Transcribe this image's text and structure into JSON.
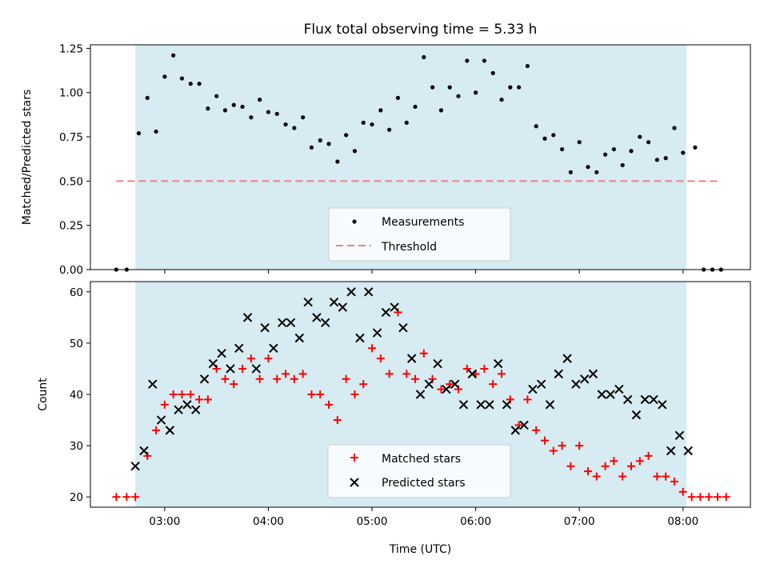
{
  "chart_data": [
    {
      "type": "scatter",
      "title": "Flux total observing time = 5.33 h",
      "xlabel": "",
      "ylabel": "Matched/Predicted stars",
      "ylim": [
        0,
        1.27
      ],
      "yticks": [
        "0.00",
        "0.25",
        "0.50",
        "0.75",
        "1.00",
        "1.25"
      ],
      "ytick_values": [
        0,
        0.25,
        0.5,
        0.75,
        1.0,
        1.25
      ],
      "xtick_labels_shown": false,
      "shaded_span": [
        "02:43",
        "08:02"
      ],
      "shade_color": "#add8e6",
      "threshold": {
        "name": "Threshold",
        "value": 0.5,
        "x_range": [
          "02:32",
          "08:22"
        ],
        "color": "#f08080"
      },
      "legend": {
        "placement": "lower center",
        "entries": [
          "Measurements",
          "Threshold"
        ]
      },
      "series": [
        {
          "name": "Measurements",
          "color": "#000000",
          "x": [
            "02:32",
            "02:38",
            "02:45",
            "02:50",
            "02:55",
            "03:00",
            "03:05",
            "03:10",
            "03:15",
            "03:20",
            "03:25",
            "03:30",
            "03:35",
            "03:40",
            "03:45",
            "03:50",
            "03:55",
            "04:00",
            "04:05",
            "04:10",
            "04:15",
            "04:20",
            "04:25",
            "04:30",
            "04:35",
            "04:40",
            "04:45",
            "04:50",
            "04:55",
            "05:00",
            "05:05",
            "05:10",
            "05:15",
            "05:20",
            "05:25",
            "05:30",
            "05:35",
            "05:40",
            "05:45",
            "05:50",
            "05:55",
            "06:00",
            "06:05",
            "06:10",
            "06:15",
            "06:20",
            "06:25",
            "06:30",
            "06:35",
            "06:40",
            "06:45",
            "06:50",
            "06:55",
            "07:00",
            "07:05",
            "07:10",
            "07:15",
            "07:20",
            "07:25",
            "07:30",
            "07:35",
            "07:40",
            "07:45",
            "07:50",
            "07:55",
            "08:00",
            "08:07",
            "08:12",
            "08:17",
            "08:22"
          ],
          "y": [
            0.0,
            0.0,
            0.77,
            0.97,
            0.78,
            1.09,
            1.21,
            1.08,
            1.05,
            1.05,
            0.91,
            0.98,
            0.9,
            0.93,
            0.92,
            0.86,
            0.96,
            0.89,
            0.88,
            0.82,
            0.8,
            0.86,
            0.69,
            0.73,
            0.71,
            0.61,
            0.76,
            0.67,
            0.83,
            0.82,
            0.9,
            0.79,
            0.97,
            0.83,
            0.92,
            1.2,
            1.03,
            0.9,
            1.03,
            0.98,
            1.18,
            1.0,
            1.18,
            1.11,
            0.96,
            1.03,
            1.03,
            1.15,
            0.81,
            0.74,
            0.76,
            0.68,
            0.55,
            0.72,
            0.58,
            0.55,
            0.65,
            0.68,
            0.59,
            0.67,
            0.75,
            0.72,
            0.62,
            0.63,
            0.8,
            0.66,
            0.69,
            0.0,
            0.0,
            0.0
          ]
        }
      ]
    },
    {
      "type": "scatter",
      "title": "",
      "xlabel": "Time (UTC)",
      "ylabel": "Count",
      "ylim": [
        18,
        62
      ],
      "yticks": [
        "20",
        "30",
        "40",
        "50",
        "60"
      ],
      "ytick_values": [
        20,
        30,
        40,
        50,
        60
      ],
      "xticks": [
        "03:00",
        "04:00",
        "05:00",
        "06:00",
        "07:00",
        "08:00"
      ],
      "x_range": [
        "02:17",
        "08:39"
      ],
      "shaded_span": [
        "02:43",
        "08:02"
      ],
      "shade_color": "#add8e6",
      "legend": {
        "placement": "lower center",
        "entries": [
          "Matched stars",
          "Predicted stars"
        ]
      },
      "series": [
        {
          "name": "Matched stars",
          "marker": "+",
          "color": "#ff0000",
          "x": [
            "02:32",
            "02:38",
            "02:43",
            "02:50",
            "02:55",
            "03:00",
            "03:05",
            "03:10",
            "03:15",
            "03:20",
            "03:25",
            "03:30",
            "03:35",
            "03:40",
            "03:45",
            "03:50",
            "03:55",
            "04:00",
            "04:05",
            "04:10",
            "04:15",
            "04:20",
            "04:25",
            "04:30",
            "04:35",
            "04:40",
            "04:45",
            "04:50",
            "04:55",
            "05:00",
            "05:05",
            "05:10",
            "05:15",
            "05:20",
            "05:25",
            "05:30",
            "05:35",
            "05:40",
            "05:45",
            "05:50",
            "05:55",
            "06:00",
            "06:05",
            "06:10",
            "06:15",
            "06:20",
            "06:25",
            "06:30",
            "06:35",
            "06:40",
            "06:45",
            "06:50",
            "06:55",
            "07:00",
            "07:05",
            "07:10",
            "07:15",
            "07:20",
            "07:25",
            "07:30",
            "07:35",
            "07:40",
            "07:45",
            "07:50",
            "07:55",
            "08:00",
            "08:05",
            "08:10",
            "08:15",
            "08:20",
            "08:25"
          ],
          "y": [
            20,
            20,
            20,
            28,
            33,
            38,
            40,
            40,
            40,
            39,
            39,
            45,
            43,
            42,
            45,
            47,
            43,
            47,
            43,
            44,
            43,
            44,
            40,
            40,
            38,
            35,
            43,
            40,
            42,
            49,
            47,
            44,
            56,
            44,
            43,
            48,
            43,
            41,
            42,
            41,
            45,
            44,
            45,
            42,
            44,
            39,
            34,
            39,
            33,
            31,
            29,
            30,
            26,
            30,
            25,
            24,
            26,
            27,
            24,
            26,
            27,
            28,
            24,
            24,
            23,
            21,
            20,
            20,
            20,
            20,
            20
          ]
        },
        {
          "name": "Predicted stars",
          "marker": "x",
          "color": "#000000",
          "x": [
            "02:43",
            "02:48",
            "02:53",
            "02:58",
            "03:03",
            "03:08",
            "03:13",
            "03:18",
            "03:23",
            "03:28",
            "03:33",
            "03:38",
            "03:43",
            "03:48",
            "03:53",
            "03:58",
            "04:03",
            "04:08",
            "04:13",
            "04:18",
            "04:23",
            "04:28",
            "04:33",
            "04:38",
            "04:43",
            "04:48",
            "04:53",
            "04:58",
            "05:03",
            "05:08",
            "05:13",
            "05:18",
            "05:23",
            "05:28",
            "05:33",
            "05:38",
            "05:43",
            "05:48",
            "05:53",
            "05:58",
            "06:03",
            "06:08",
            "06:13",
            "06:18",
            "06:23",
            "06:28",
            "06:33",
            "06:38",
            "06:43",
            "06:48",
            "06:53",
            "06:58",
            "07:03",
            "07:08",
            "07:13",
            "07:18",
            "07:23",
            "07:28",
            "07:33",
            "07:38",
            "07:43",
            "07:48",
            "07:53",
            "07:58",
            "08:03"
          ],
          "y": [
            26,
            29,
            42,
            35,
            33,
            37,
            38,
            37,
            43,
            46,
            48,
            45,
            49,
            55,
            45,
            53,
            49,
            54,
            54,
            51,
            58,
            55,
            54,
            58,
            57,
            60,
            51,
            60,
            52,
            56,
            57,
            53,
            47,
            40,
            42,
            46,
            41,
            42,
            38,
            44,
            38,
            38,
            46,
            38,
            33,
            34,
            41,
            42,
            38,
            44,
            47,
            42,
            43,
            44,
            40,
            40,
            41,
            39,
            36,
            39,
            39,
            38,
            29,
            32,
            29
          ]
        }
      ]
    }
  ]
}
